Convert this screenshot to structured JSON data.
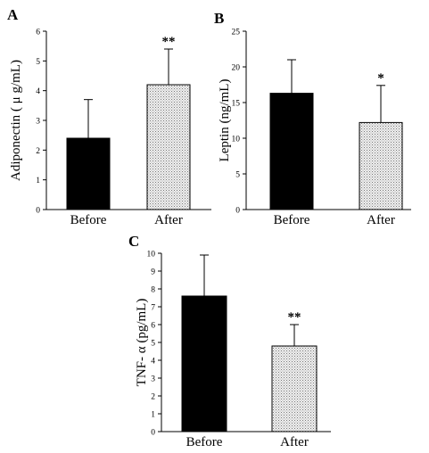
{
  "chart_data": [
    {
      "panel": "A",
      "type": "bar",
      "categories": [
        "Before",
        "After"
      ],
      "values": [
        2.4,
        4.2
      ],
      "error_upper": [
        1.3,
        1.2
      ],
      "significance": [
        "",
        "**"
      ],
      "ylabel": "Adiponectin ( μ g/mL)",
      "ylim": [
        0,
        6
      ],
      "yticks": [
        0,
        1,
        2,
        3,
        4,
        5,
        6
      ],
      "colors": [
        "#000000",
        "#d8d8d8"
      ],
      "grid": false
    },
    {
      "panel": "B",
      "type": "bar",
      "categories": [
        "Before",
        "After"
      ],
      "values": [
        16.3,
        12.2
      ],
      "error_upper": [
        4.7,
        5.2
      ],
      "significance": [
        "",
        "*"
      ],
      "ylabel": "Leptin (ng/mL)",
      "ylim": [
        0,
        25
      ],
      "yticks": [
        0,
        5,
        10,
        15,
        20,
        25
      ],
      "colors": [
        "#000000",
        "#d8d8d8"
      ],
      "grid": false
    },
    {
      "panel": "C",
      "type": "bar",
      "categories": [
        "Before",
        "After"
      ],
      "values": [
        7.6,
        4.8
      ],
      "error_upper": [
        2.3,
        1.2
      ],
      "significance": [
        "",
        "**"
      ],
      "ylabel": "TNF- α (pg/mL)",
      "ylim": [
        0,
        10
      ],
      "yticks": [
        0,
        1,
        2,
        3,
        4,
        5,
        6,
        7,
        8,
        9,
        10
      ],
      "colors": [
        "#000000",
        "#d8d8d8"
      ],
      "grid": false
    }
  ]
}
